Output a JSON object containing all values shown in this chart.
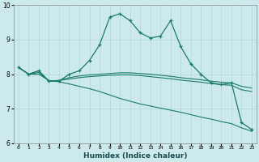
{
  "xlabel": "Humidex (Indice chaleur)",
  "background_color": "#cceaec",
  "grid_color": "#aed8db",
  "line_color": "#1a7a6e",
  "xlim": [
    -0.5,
    23.5
  ],
  "ylim": [
    6,
    10
  ],
  "yticks": [
    6,
    7,
    8,
    9,
    10
  ],
  "xticks": [
    0,
    1,
    2,
    3,
    4,
    5,
    6,
    7,
    8,
    9,
    10,
    11,
    12,
    13,
    14,
    15,
    16,
    17,
    18,
    19,
    20,
    21,
    22,
    23
  ],
  "series": [
    {
      "x": [
        0,
        1,
        2,
        3,
        4,
        5,
        6,
        7,
        8,
        9,
        10,
        11,
        12,
        13,
        14,
        15,
        16,
        17,
        18,
        19,
        20,
        21,
        22,
        23
      ],
      "y": [
        8.2,
        8.0,
        8.1,
        7.8,
        7.8,
        8.0,
        8.1,
        8.4,
        8.85,
        9.65,
        9.75,
        9.55,
        9.2,
        9.05,
        9.1,
        9.55,
        8.8,
        8.3,
        8.0,
        7.75,
        7.7,
        7.75,
        6.6,
        6.4
      ],
      "marker": "+"
    },
    {
      "x": [
        0,
        1,
        2,
        3,
        4,
        5,
        6,
        7,
        8,
        9,
        10,
        11,
        12,
        13,
        14,
        15,
        16,
        17,
        18,
        19,
        20,
        21,
        22,
        23
      ],
      "y": [
        8.2,
        8.0,
        8.1,
        7.8,
        7.82,
        7.9,
        7.95,
        7.98,
        8.0,
        8.02,
        8.04,
        8.04,
        8.02,
        8.0,
        7.97,
        7.94,
        7.9,
        7.87,
        7.84,
        7.8,
        7.77,
        7.75,
        7.65,
        7.6
      ],
      "marker": null
    },
    {
      "x": [
        0,
        1,
        2,
        3,
        4,
        5,
        6,
        7,
        8,
        9,
        10,
        11,
        12,
        13,
        14,
        15,
        16,
        17,
        18,
        19,
        20,
        21,
        22,
        23
      ],
      "y": [
        8.2,
        8.0,
        8.05,
        7.8,
        7.82,
        7.86,
        7.9,
        7.93,
        7.95,
        7.97,
        7.98,
        7.98,
        7.96,
        7.93,
        7.9,
        7.87,
        7.83,
        7.8,
        7.77,
        7.73,
        7.7,
        7.68,
        7.55,
        7.5
      ],
      "marker": null
    },
    {
      "x": [
        0,
        1,
        2,
        3,
        4,
        5,
        6,
        7,
        8,
        9,
        10,
        11,
        12,
        13,
        14,
        15,
        16,
        17,
        18,
        19,
        20,
        21,
        22,
        23
      ],
      "y": [
        8.2,
        8.0,
        8.0,
        7.82,
        7.78,
        7.72,
        7.65,
        7.58,
        7.5,
        7.4,
        7.3,
        7.22,
        7.14,
        7.08,
        7.02,
        6.96,
        6.9,
        6.83,
        6.76,
        6.7,
        6.63,
        6.57,
        6.45,
        6.35
      ],
      "marker": null
    }
  ]
}
